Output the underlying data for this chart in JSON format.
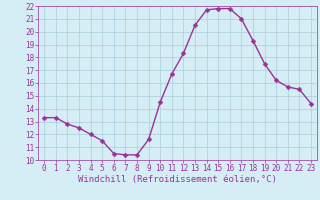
{
  "x": [
    0,
    1,
    2,
    3,
    4,
    5,
    6,
    7,
    8,
    9,
    10,
    11,
    12,
    13,
    14,
    15,
    16,
    17,
    18,
    19,
    20,
    21,
    22,
    23
  ],
  "y": [
    13.3,
    13.3,
    12.8,
    12.5,
    12.0,
    11.5,
    10.5,
    10.4,
    10.4,
    11.6,
    14.5,
    16.7,
    18.3,
    20.5,
    21.7,
    21.8,
    21.8,
    21.0,
    19.3,
    17.5,
    16.2,
    15.7,
    15.5,
    14.4
  ],
  "xlabel": "Windchill (Refroidissement éolien,°C)",
  "xlim_min": -0.5,
  "xlim_max": 23.5,
  "ylim_min": 10,
  "ylim_max": 22,
  "yticks": [
    10,
    11,
    12,
    13,
    14,
    15,
    16,
    17,
    18,
    19,
    20,
    21,
    22
  ],
  "xticks": [
    0,
    1,
    2,
    3,
    4,
    5,
    6,
    7,
    8,
    9,
    10,
    11,
    12,
    13,
    14,
    15,
    16,
    17,
    18,
    19,
    20,
    21,
    22,
    23
  ],
  "line_color": "#993399",
  "marker_color": "#993399",
  "bg_color": "#d5eef5",
  "grid_color": "#aaccdd",
  "axis_color": "#993399",
  "tick_label_color": "#993399",
  "xlabel_color": "#993399",
  "xlabel_fontsize": 6.5,
  "tick_fontsize": 5.5,
  "line_width": 1.0,
  "marker_size": 2.5
}
